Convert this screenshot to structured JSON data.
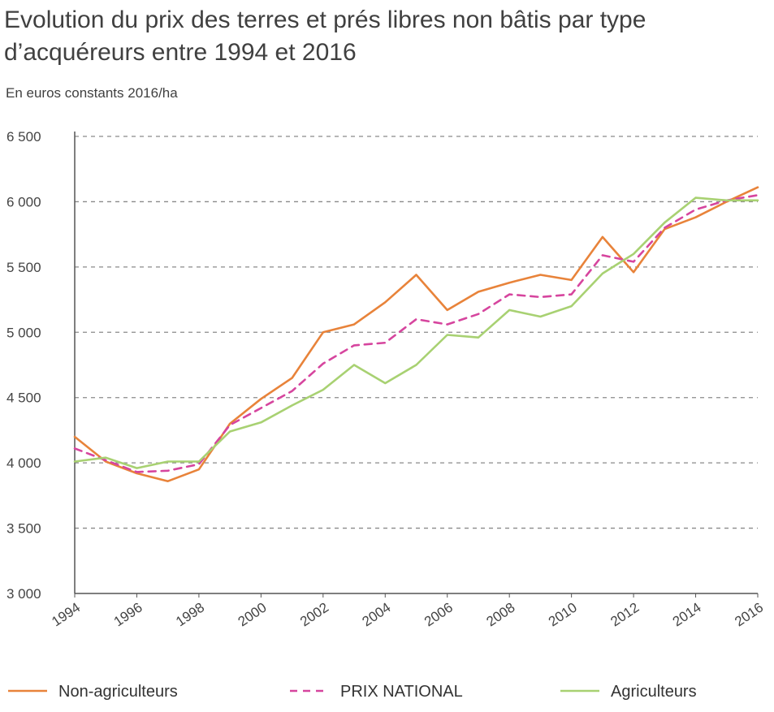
{
  "chart_data": {
    "type": "line",
    "title_lines": [
      "Evolution du prix des terres et prés libres non bâtis par type",
      "d’acquéreurs entre 1994 et 2016"
    ],
    "subtitle": "En euros constants 2016/ha",
    "x": [
      1994,
      1995,
      1996,
      1997,
      1998,
      1999,
      2000,
      2001,
      2002,
      2003,
      2004,
      2005,
      2006,
      2007,
      2008,
      2009,
      2010,
      2011,
      2012,
      2013,
      2014,
      2015,
      2016
    ],
    "x_tick_labels": [
      "1994",
      "1996",
      "1998",
      "2000",
      "2002",
      "2004",
      "2006",
      "2008",
      "2010",
      "2012",
      "2014",
      "2016"
    ],
    "y_tick_labels": [
      "3 000",
      "3 500",
      "4 000",
      "4 500",
      "5 000",
      "5 500",
      "6 000",
      "6 500"
    ],
    "ylim": [
      3000,
      6500
    ],
    "grid": true,
    "legend_position": "bottom",
    "series": [
      {
        "name": "Non-agriculteurs",
        "color": "#e8833a",
        "style": "solid",
        "values": [
          4200,
          4010,
          3920,
          3860,
          3950,
          4300,
          4490,
          4650,
          5000,
          5060,
          5230,
          5440,
          5170,
          5310,
          5380,
          5440,
          5400,
          5730,
          5460,
          5790,
          5880,
          6000,
          6110
        ]
      },
      {
        "name": "PRIX NATIONAL",
        "color": "#d6459e",
        "style": "dashed",
        "values": [
          4110,
          4020,
          3930,
          3940,
          3990,
          4290,
          4420,
          4550,
          4760,
          4900,
          4920,
          5100,
          5060,
          5140,
          5290,
          5270,
          5290,
          5590,
          5540,
          5800,
          5940,
          6010,
          6050
        ]
      },
      {
        "name": "Agriculteurs",
        "color": "#a8d172",
        "style": "solid",
        "values": [
          4010,
          4040,
          3960,
          4010,
          4010,
          4240,
          4310,
          4440,
          4560,
          4750,
          4610,
          4750,
          4980,
          4960,
          5170,
          5120,
          5200,
          5450,
          5600,
          5840,
          6030,
          6010,
          6010
        ]
      }
    ]
  }
}
